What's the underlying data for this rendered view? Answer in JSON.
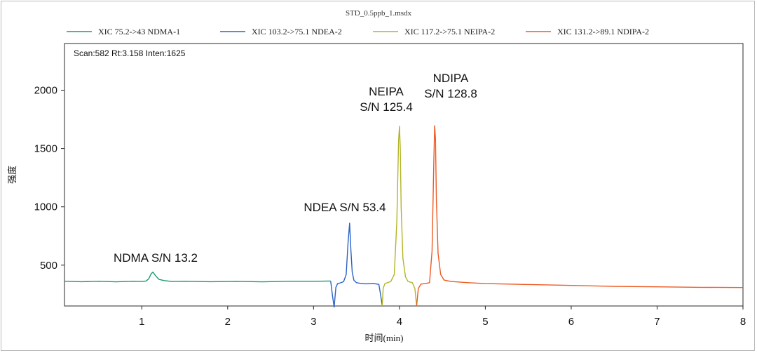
{
  "chart_data": {
    "type": "line",
    "title": "STD_0.5ppb_1.msdx",
    "xlabel": "时间(min)",
    "ylabel": "强度",
    "xlim": [
      0.1,
      8.0
    ],
    "ylim": [
      150,
      2400
    ],
    "x_ticks": [
      1,
      2,
      3,
      4,
      5,
      6,
      7,
      8
    ],
    "y_ticks": [
      500,
      1000,
      1500,
      2000
    ],
    "legend_position": "top",
    "grid": false,
    "info_text": "Scan:582  Rt:3.158  Inten:1625",
    "series": [
      {
        "name": "XIC 75.2->43 NDMA-1",
        "color": "#1e9a6e",
        "x": [
          0.1,
          0.3,
          0.5,
          0.7,
          0.9,
          1.0,
          1.05,
          1.08,
          1.11,
          1.13,
          1.16,
          1.2,
          1.26,
          1.35,
          1.5,
          1.8,
          2.1,
          2.4,
          2.7,
          3.0,
          3.2
        ],
        "y": [
          362,
          358,
          362,
          357,
          362,
          360,
          364,
          382,
          428,
          440,
          410,
          378,
          368,
          360,
          362,
          358,
          361,
          357,
          362,
          362,
          364
        ]
      },
      {
        "name": "XIC 103.2->75.1 NDEA-2",
        "color": "#2b63c6",
        "x": [
          3.2,
          3.22,
          3.24,
          3.26,
          3.28,
          3.3,
          3.35,
          3.38,
          3.4,
          3.42,
          3.435,
          3.45,
          3.47,
          3.5,
          3.55,
          3.6,
          3.7,
          3.76,
          3.78,
          3.8
        ],
        "y": [
          362,
          240,
          140,
          310,
          342,
          345,
          358,
          420,
          680,
          860,
          630,
          440,
          370,
          350,
          344,
          340,
          342,
          335,
          250,
          150
        ]
      },
      {
        "name": "XIC 117.2->75.1 NEIPA-2",
        "color": "#b4b428",
        "x": [
          3.8,
          3.81,
          3.83,
          3.86,
          3.9,
          3.94,
          3.97,
          3.99,
          4.0,
          4.01,
          4.02,
          4.04,
          4.07,
          4.1,
          4.15,
          4.18,
          4.2
        ],
        "y": [
          150,
          300,
          340,
          350,
          360,
          420,
          880,
          1560,
          1690,
          1500,
          1000,
          560,
          400,
          360,
          350,
          300,
          150
        ]
      },
      {
        "name": "XIC 131.2->89.1 NDIPA-2",
        "color": "#ee5a22",
        "x": [
          4.2,
          4.22,
          4.25,
          4.3,
          4.35,
          4.38,
          4.4,
          4.41,
          4.42,
          4.43,
          4.45,
          4.48,
          4.52,
          4.6,
          4.8,
          5.0,
          5.5,
          6.0,
          6.5,
          7.0,
          7.5,
          8.0
        ],
        "y": [
          150,
          300,
          338,
          342,
          350,
          620,
          1380,
          1695,
          1580,
          1060,
          600,
          420,
          372,
          360,
          350,
          342,
          334,
          326,
          318,
          314,
          310,
          308
        ]
      }
    ],
    "annotations": [
      {
        "lines": [
          "NDMA S/N 13.2"
        ],
        "color": "#1e9a6e"
      },
      {
        "lines": [
          "NDEA S/N 53.4"
        ],
        "color": "#2b63c6"
      },
      {
        "lines": [
          "NEIPA",
          "S/N 125.4"
        ],
        "color": "#b4b428"
      },
      {
        "lines": [
          "NDIPA",
          "S/N 128.8"
        ],
        "color": "#ee5a22"
      }
    ]
  }
}
